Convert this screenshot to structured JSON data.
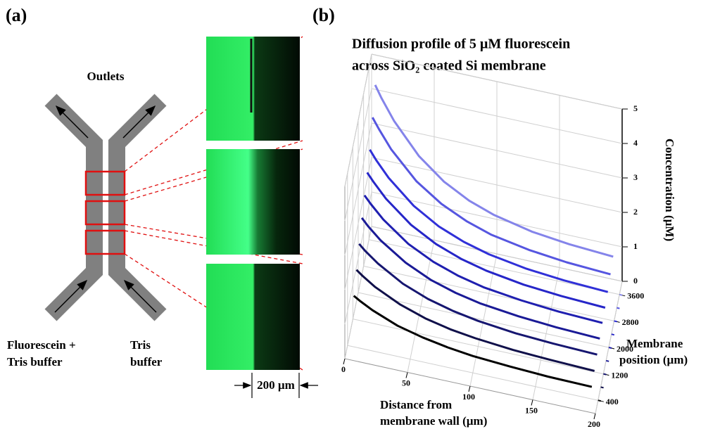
{
  "panel_a": {
    "label": "(a)",
    "outlets": "Outlets",
    "left_inlet": [
      "Fluorescein +",
      "Tris buffer"
    ],
    "right_inlet": [
      "Tris",
      "buffer"
    ],
    "scale_bar": "200 µm"
  },
  "chart_data": {
    "type": "line3d",
    "label": "(b)",
    "title": [
      "Diffusion profile of 5 µM fluorescein",
      "across SiO₂ coated Si membrane"
    ],
    "x_label": [
      "Distance from",
      "membrane wall (µm)"
    ],
    "depth_label": [
      "Membrane",
      "position (µm)"
    ],
    "z_label": "Concentration (µM)",
    "x": [
      5,
      10,
      20,
      40,
      60,
      80,
      100,
      130,
      160,
      195
    ],
    "xlim": [
      0,
      200
    ],
    "xticks": [
      0,
      50,
      100,
      150,
      200
    ],
    "depthlim": [
      0,
      4000
    ],
    "depthticks": [
      400,
      1200,
      2000,
      2800,
      3600
    ],
    "zlim": [
      0,
      5
    ],
    "zticks": [
      0,
      1,
      2,
      3,
      4,
      5
    ],
    "grid": true,
    "series": [
      {
        "position": 400,
        "color": "#000000",
        "values": [
          1.48,
          1.37,
          1.18,
          0.89,
          0.71,
          0.58,
          0.49,
          0.42,
          0.37,
          0.35
        ]
      },
      {
        "position": 800,
        "color": "#10104a",
        "values": [
          1.85,
          1.71,
          1.47,
          1.12,
          0.88,
          0.72,
          0.62,
          0.52,
          0.47,
          0.43
        ]
      },
      {
        "position": 1200,
        "color": "#161670",
        "values": [
          2.22,
          2.05,
          1.77,
          1.34,
          1.06,
          0.87,
          0.74,
          0.62,
          0.56,
          0.52
        ]
      },
      {
        "position": 1600,
        "color": "#1a1a96",
        "values": [
          2.59,
          2.39,
          2.06,
          1.57,
          1.23,
          1.01,
          0.86,
          0.73,
          0.65,
          0.6
        ]
      },
      {
        "position": 2000,
        "color": "#1f1fb0",
        "values": [
          2.86,
          2.65,
          2.28,
          1.73,
          1.37,
          1.12,
          0.95,
          0.81,
          0.72,
          0.67
        ]
      },
      {
        "position": 2400,
        "color": "#2626c8",
        "values": [
          3.14,
          2.91,
          2.5,
          1.9,
          1.5,
          1.23,
          1.05,
          0.88,
          0.79,
          0.73
        ]
      },
      {
        "position": 2800,
        "color": "#3030d8",
        "values": [
          3.42,
          3.16,
          2.72,
          2.07,
          1.63,
          1.34,
          1.14,
          0.96,
          0.86,
          0.8
        ]
      },
      {
        "position": 3200,
        "color": "#5656e0",
        "values": [
          3.97,
          3.68,
          3.16,
          2.4,
          1.9,
          1.56,
          1.32,
          1.12,
          1.0,
          0.93
        ]
      },
      {
        "position": 3600,
        "color": "#8484ea",
        "values": [
          4.53,
          4.19,
          3.61,
          2.74,
          2.16,
          1.77,
          1.51,
          1.27,
          1.14,
          1.06
        ]
      }
    ]
  }
}
